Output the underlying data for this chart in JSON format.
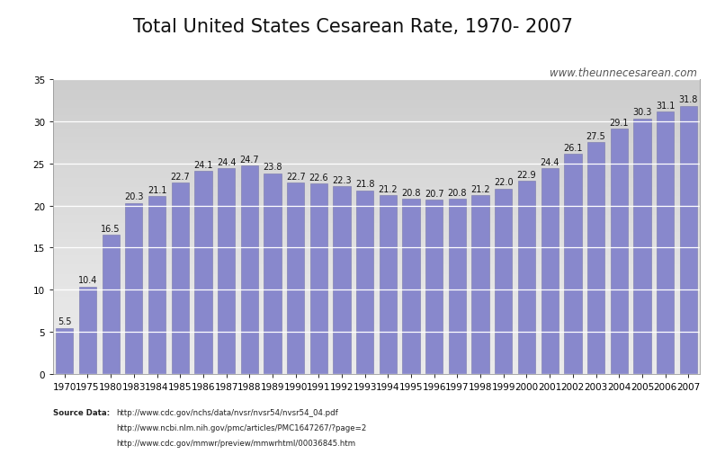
{
  "title": "Total United States Cesarean Rate, 1970- 2007",
  "watermark": "www.theunnecesarean.com",
  "source_line1": "Source Data:   http://www.cdc.gov/nchs/data/nvsr/nvsr54/nvsr54_04.pdf",
  "source_line2": "                http://www.ncbi.nlm.nih.gov/pmc/articles/PMC1647267/?page=2",
  "source_line3": "                http://www.cdc.gov/mmwr/preview/mmwrhtml/00036845.htm",
  "years": [
    "1970",
    "1975",
    "1980",
    "1983",
    "1984",
    "1985",
    "1986",
    "1987",
    "1988",
    "1989",
    "1990",
    "1991",
    "1992",
    "1993",
    "1994",
    "1995",
    "1996",
    "1997",
    "1998",
    "1999",
    "2000",
    "2001",
    "2002",
    "2003",
    "2004",
    "2005",
    "2006",
    "2007"
  ],
  "values": [
    5.5,
    10.4,
    16.5,
    20.3,
    21.1,
    22.7,
    24.1,
    24.4,
    24.7,
    23.8,
    22.7,
    22.6,
    22.3,
    21.8,
    21.2,
    20.8,
    20.7,
    20.8,
    21.2,
    22.0,
    22.9,
    24.4,
    26.1,
    27.5,
    29.1,
    30.3,
    31.1,
    31.8
  ],
  "bar_color": "#8888cc",
  "bar_edge_color": "#7777aa",
  "fig_facecolor": "#ffffff",
  "plot_facecolor": "#e8e8e8",
  "ylim": [
    0,
    35
  ],
  "yticks": [
    0,
    5,
    10,
    15,
    20,
    25,
    30,
    35
  ],
  "title_fontsize": 15,
  "tick_fontsize": 7.5,
  "label_fontsize": 7,
  "watermark_fontsize": 8.5,
  "source_fontsize": 6.2
}
